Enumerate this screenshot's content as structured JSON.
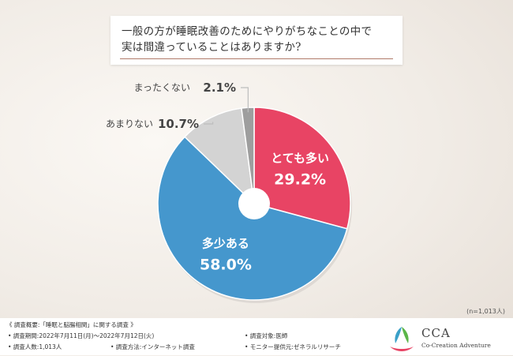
{
  "title": {
    "line1": "一般の方が睡眠改善のためにやりがちなことの中で",
    "line2": "実は間違っていることはありますか?"
  },
  "chart_data": {
    "type": "pie",
    "donut": true,
    "categories": [
      "とても多い",
      "多少ある",
      "あまりない",
      "まったくない"
    ],
    "values": [
      29.2,
      58.0,
      10.7,
      2.1
    ],
    "value_labels": [
      "29.2%",
      "58.0%",
      "10.7%",
      "2.1%"
    ],
    "colors": [
      "#e84464",
      "#4597cd",
      "#d3d3d3",
      "#9e9e9e"
    ],
    "label_placement": [
      "inside",
      "inside",
      "outside-left",
      "outside-left"
    ],
    "start_angle_deg": 0,
    "direction": "clockwise"
  },
  "sample_note": "(n=1,013人)",
  "footer": {
    "overview": "《 調査概要:「睡眠と脳腸相関」に関する調査 》",
    "period": "• 調査期間:2022年7月11日(月)〜2022年7月12日(火)",
    "count": "• 調査人数:1,013人",
    "method": "• 調査方法:インターネット調査",
    "target": "• 調査対象:医師",
    "provider": "• モニター提供元:ゼネラルリサーチ"
  },
  "logo": {
    "name": "CCA",
    "subtitle": "Co-Creation Adventure",
    "colors": [
      "#3aa0c8",
      "#5bb548",
      "#e84464"
    ]
  }
}
